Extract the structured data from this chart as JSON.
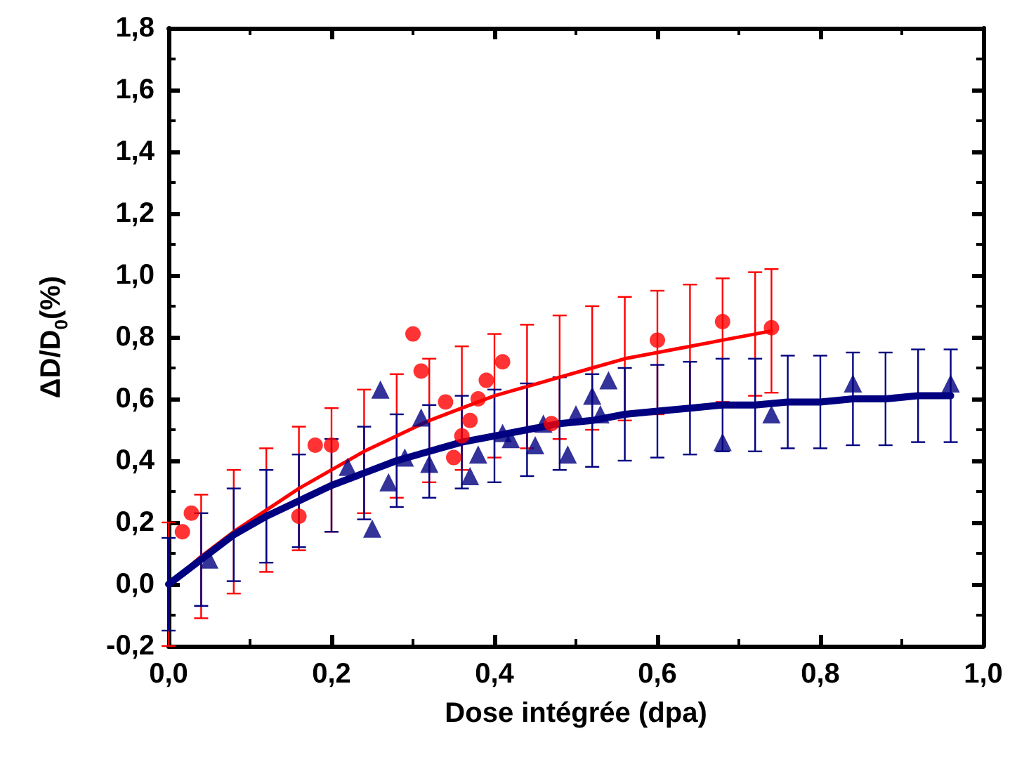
{
  "chart_data": {
    "type": "scatter",
    "xlabel": "Dose intégrée (dpa)",
    "ylabel": "ΔD/D$_{0}$(%)",
    "xlim": [
      0,
      1
    ],
    "xticks": [
      {
        "value": 0,
        "label": "0,0"
      },
      {
        "value": 0.2,
        "label": "0,2"
      },
      {
        "value": 0.4,
        "label": "0,4"
      },
      {
        "value": 0.6,
        "label": "0,6"
      },
      {
        "value": 0.8,
        "label": "0,8"
      },
      {
        "value": 1,
        "label": "1,0"
      }
    ],
    "ylim": [
      -0.2,
      1.8
    ],
    "yticks": [
      {
        "value": -0.2,
        "label": "-0,2"
      },
      {
        "value": 0,
        "label": "0,0"
      },
      {
        "value": 0.2,
        "label": "0,2"
      },
      {
        "value": 0.4,
        "label": "0,4"
      },
      {
        "value": 0.6,
        "label": "0,6"
      },
      {
        "value": 0.8,
        "label": "0,8"
      },
      {
        "value": 1,
        "label": "1,0"
      },
      {
        "value": 1.2,
        "label": "1,2"
      },
      {
        "value": 1.4,
        "label": "1,4"
      },
      {
        "value": 1.6,
        "label": "1,6"
      },
      {
        "value": 1.8,
        "label": "1,8"
      }
    ],
    "series": [
      {
        "type": "line",
        "marker": "none",
        "color": "#ff0000",
        "x": [
          0,
          0.04,
          0.08,
          0.12,
          0.16,
          0.2,
          0.24,
          0.28,
          0.32,
          0.36,
          0.4,
          0.44,
          0.48,
          0.52,
          0.56,
          0.6,
          0.64,
          0.68,
          0.72,
          0.74
        ],
        "values": [
          0,
          0.09,
          0.17,
          0.24,
          0.31,
          0.37,
          0.43,
          0.48,
          0.53,
          0.57,
          0.61,
          0.64,
          0.67,
          0.7,
          0.73,
          0.75,
          0.77,
          0.79,
          0.81,
          0.82
        ],
        "errors": [
          0.2,
          0.2,
          0.2,
          0.2,
          0.2,
          0.2,
          0.2,
          0.2,
          0.2,
          0.2,
          0.2,
          0.2,
          0.2,
          0.2,
          0.2,
          0.2,
          0.2,
          0.2,
          0.2,
          0.2
        ]
      },
      {
        "type": "line",
        "marker": "none",
        "color": "#000080",
        "x": [
          0,
          0.04,
          0.08,
          0.12,
          0.16,
          0.2,
          0.24,
          0.28,
          0.32,
          0.36,
          0.4,
          0.44,
          0.48,
          0.52,
          0.56,
          0.6,
          0.64,
          0.68,
          0.72,
          0.76,
          0.8,
          0.84,
          0.88,
          0.92,
          0.96
        ],
        "values": [
          0,
          0.08,
          0.16,
          0.22,
          0.27,
          0.32,
          0.36,
          0.4,
          0.43,
          0.46,
          0.48,
          0.5,
          0.52,
          0.53,
          0.55,
          0.56,
          0.57,
          0.58,
          0.58,
          0.59,
          0.59,
          0.6,
          0.6,
          0.61,
          0.61
        ],
        "errors": [
          0.15,
          0.15,
          0.15,
          0.15,
          0.15,
          0.15,
          0.15,
          0.15,
          0.15,
          0.15,
          0.15,
          0.15,
          0.15,
          0.15,
          0.15,
          0.15,
          0.15,
          0.15,
          0.15,
          0.15,
          0.15,
          0.15,
          0.15,
          0.15,
          0.15
        ]
      },
      {
        "marker": "triangle",
        "color": "#000080",
        "x": [
          0.05,
          0.22,
          0.25,
          0.26,
          0.27,
          0.29,
          0.31,
          0.32,
          0.37,
          0.38,
          0.41,
          0.42,
          0.45,
          0.46,
          0.49,
          0.5,
          0.52,
          0.53,
          0.54,
          0.68,
          0.74,
          0.84,
          0.96
        ],
        "values": [
          0.08,
          0.38,
          0.18,
          0.63,
          0.33,
          0.41,
          0.54,
          0.39,
          0.35,
          0.42,
          0.49,
          0.47,
          0.45,
          0.52,
          0.42,
          0.55,
          0.61,
          0.55,
          0.66,
          0.46,
          0.55,
          0.65,
          0.65
        ]
      },
      {
        "marker": "circle",
        "color": "#ff0000",
        "x": [
          0.017,
          0.028,
          0.16,
          0.18,
          0.2,
          0.3,
          0.31,
          0.34,
          0.35,
          0.36,
          0.37,
          0.38,
          0.39,
          0.41,
          0.47,
          0.6,
          0.68,
          0.74
        ],
        "values": [
          0.17,
          0.23,
          0.22,
          0.45,
          0.45,
          0.81,
          0.69,
          0.59,
          0.41,
          0.48,
          0.53,
          0.6,
          0.66,
          0.72,
          0.52,
          0.79,
          0.85,
          0.83
        ]
      }
    ]
  }
}
